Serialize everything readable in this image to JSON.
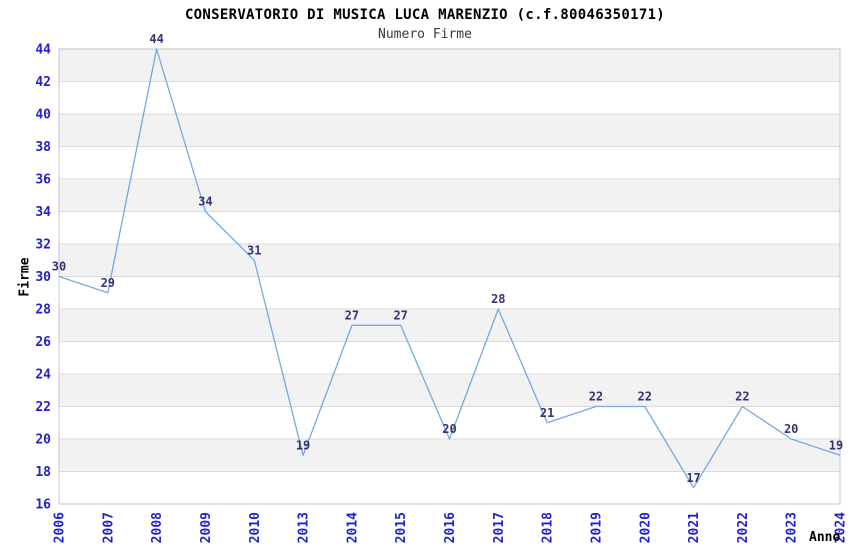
{
  "chart_data": {
    "type": "line",
    "title": "CONSERVATORIO DI MUSICA LUCA MARENZIO (c.f.80046350171)",
    "subtitle": "Numero Firme",
    "xlabel": "Anno",
    "ylabel": "Firme",
    "categories": [
      "2006",
      "2007",
      "2008",
      "2009",
      "2010",
      "2013",
      "2014",
      "2015",
      "2016",
      "2017",
      "2018",
      "2019",
      "2020",
      "2021",
      "2022",
      "2023",
      "2024"
    ],
    "values": [
      30,
      29,
      44,
      34,
      31,
      19,
      27,
      27,
      20,
      28,
      21,
      22,
      22,
      17,
      22,
      20,
      19
    ],
    "ylim": [
      16,
      44
    ],
    "ytick_step": 2,
    "grid": "horizontal-bands",
    "legend": "none",
    "colors": {
      "line": "#74A9E3",
      "tick_label": "#2222CC",
      "data_label": "#333377",
      "band": "#F2F2F2",
      "gridline": "#DBDBDB",
      "plot_border": "#C4C4C4",
      "title": "#000000",
      "subtitle": "#3A3A3A",
      "axis_title": "#000000",
      "background": "#FFFFFF"
    }
  }
}
